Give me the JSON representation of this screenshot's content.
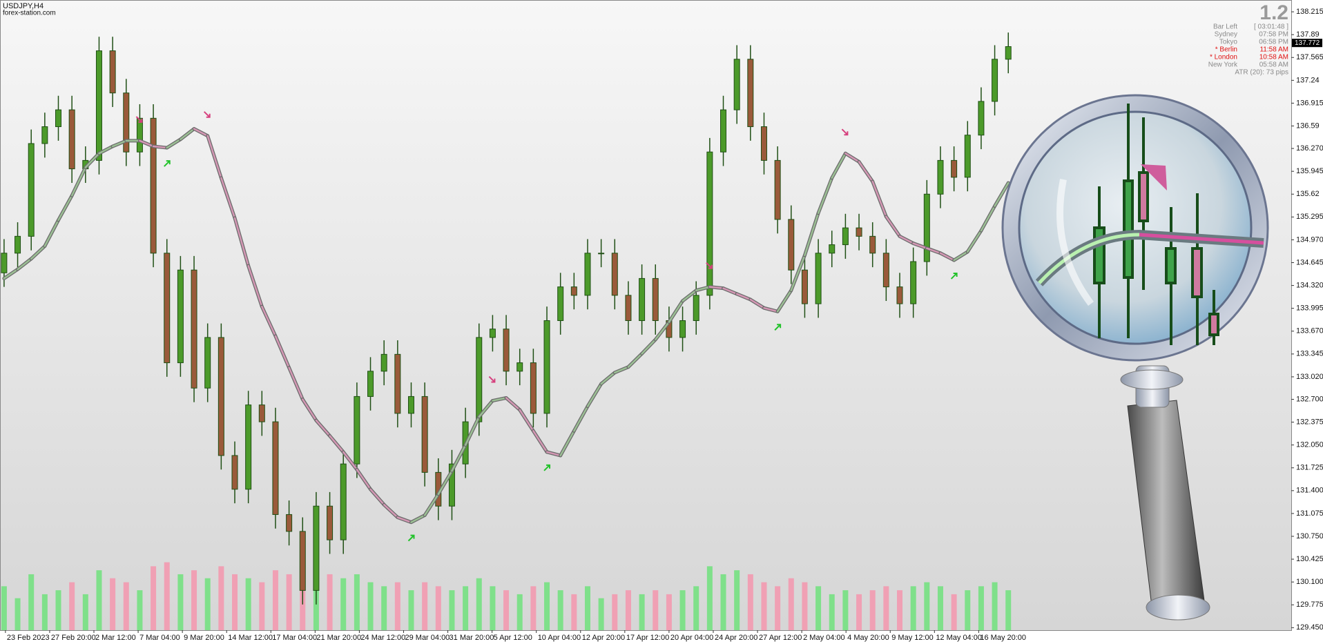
{
  "chart_data": {
    "type": "candlestick",
    "symbol": "USDJPY,H4",
    "source": "forex-station.com",
    "open": [
      134.5,
      134.78,
      135.02,
      136.34,
      136.58,
      136.82,
      135.98,
      136.1,
      137.66,
      137.06,
      136.22,
      136.7,
      134.78,
      133.22,
      134.54,
      132.86,
      133.58,
      131.9,
      131.42,
      132.62,
      132.38,
      131.06,
      130.82,
      129.98,
      131.18,
      130.7,
      131.78,
      132.74,
      133.1,
      133.34,
      132.5,
      132.74,
      131.66,
      131.18,
      131.78,
      132.38,
      133.58,
      133.7,
      133.1,
      133.22,
      132.5,
      133.82,
      134.3,
      134.18,
      134.78,
      134.78,
      134.18,
      133.82,
      134.42,
      133.82,
      133.58,
      133.82,
      134.18,
      136.22,
      136.82,
      137.54,
      136.58,
      136.1,
      135.26,
      134.54,
      134.06,
      134.78,
      134.9,
      135.14,
      135.02,
      134.78,
      134.3,
      134.06,
      134.66,
      135.62,
      136.1,
      135.86,
      136.46,
      136.94,
      137.54
    ],
    "high": [
      134.98,
      135.22,
      136.54,
      136.78,
      137.02,
      137.02,
      136.3,
      137.86,
      137.86,
      137.26,
      136.9,
      136.9,
      134.98,
      134.74,
      134.74,
      133.78,
      133.78,
      132.1,
      132.82,
      132.82,
      132.58,
      131.26,
      131.02,
      131.38,
      131.38,
      131.98,
      132.94,
      133.3,
      133.54,
      133.54,
      132.94,
      132.94,
      131.86,
      131.98,
      132.58,
      133.78,
      133.9,
      133.9,
      133.42,
      133.42,
      134.02,
      134.5,
      134.5,
      134.98,
      134.98,
      134.98,
      134.38,
      134.62,
      134.62,
      134.02,
      134.02,
      134.38,
      136.42,
      137.02,
      137.74,
      137.74,
      136.78,
      136.3,
      135.46,
      134.74,
      134.98,
      135.1,
      135.34,
      135.34,
      135.22,
      134.98,
      134.5,
      134.86,
      135.82,
      136.3,
      136.3,
      136.66,
      137.14,
      137.74,
      137.92
    ],
    "low": [
      134.3,
      134.58,
      134.82,
      136.14,
      136.38,
      135.78,
      135.78,
      135.9,
      136.86,
      136.02,
      136.02,
      134.58,
      133.02,
      133.02,
      132.66,
      132.66,
      131.7,
      131.22,
      131.22,
      132.18,
      130.86,
      130.62,
      129.78,
      129.78,
      130.5,
      130.5,
      131.58,
      132.54,
      132.9,
      132.3,
      132.3,
      131.46,
      130.98,
      130.98,
      131.58,
      132.18,
      133.38,
      132.9,
      132.9,
      132.3,
      132.3,
      133.62,
      133.98,
      133.98,
      134.58,
      133.98,
      133.62,
      133.62,
      133.62,
      133.38,
      133.38,
      133.62,
      133.98,
      136.02,
      136.62,
      136.38,
      135.9,
      135.06,
      134.34,
      133.86,
      133.86,
      134.58,
      134.7,
      134.82,
      134.58,
      134.1,
      133.86,
      133.86,
      134.46,
      135.42,
      135.66,
      135.66,
      136.26,
      136.74,
      137.34
    ],
    "close": [
      134.78,
      135.02,
      136.34,
      136.58,
      136.82,
      135.98,
      136.1,
      137.66,
      137.06,
      136.22,
      136.7,
      134.78,
      133.22,
      134.54,
      132.86,
      133.58,
      131.9,
      131.42,
      132.62,
      132.38,
      131.06,
      130.82,
      129.98,
      131.18,
      130.7,
      131.78,
      132.74,
      133.1,
      133.34,
      132.5,
      132.74,
      131.66,
      131.18,
      131.78,
      132.38,
      133.58,
      133.7,
      133.1,
      133.22,
      132.5,
      133.82,
      134.3,
      134.18,
      134.78,
      134.78,
      134.18,
      133.82,
      134.42,
      133.82,
      133.58,
      133.82,
      134.18,
      136.22,
      136.82,
      137.54,
      136.58,
      136.1,
      135.26,
      134.54,
      134.06,
      134.78,
      134.9,
      135.14,
      135.02,
      134.78,
      134.3,
      134.06,
      134.66,
      135.62,
      136.1,
      135.86,
      136.46,
      136.94,
      137.54,
      137.72
    ],
    "ma": [
      134.42,
      134.55,
      134.7,
      134.88,
      135.25,
      135.6,
      136.0,
      136.2,
      136.3,
      136.38,
      136.38,
      136.3,
      136.28,
      136.4,
      136.55,
      136.45,
      135.85,
      135.28,
      134.6,
      134.02,
      133.6,
      133.15,
      132.7,
      132.4,
      132.18,
      131.95,
      131.7,
      131.42,
      131.2,
      131.02,
      130.95,
      131.05,
      131.35,
      131.68,
      132.05,
      132.45,
      132.68,
      132.72,
      132.55,
      132.25,
      131.95,
      131.9,
      132.25,
      132.6,
      132.92,
      133.08,
      133.16,
      133.35,
      133.55,
      133.8,
      134.1,
      134.25,
      134.3,
      134.28,
      134.2,
      134.12,
      134.0,
      133.95,
      134.25,
      134.75,
      135.35,
      135.85,
      136.2,
      136.08,
      135.8,
      135.3,
      135.02,
      134.92,
      134.85,
      134.78,
      134.68,
      134.8,
      135.1,
      135.45,
      135.78
    ],
    "volume": [
      55,
      40,
      70,
      45,
      50,
      60,
      45,
      75,
      65,
      60,
      50,
      80,
      85,
      70,
      75,
      65,
      80,
      70,
      65,
      60,
      75,
      70,
      95,
      85,
      70,
      65,
      70,
      60,
      55,
      60,
      50,
      60,
      55,
      50,
      55,
      65,
      55,
      50,
      45,
      55,
      60,
      50,
      45,
      55,
      40,
      45,
      50,
      45,
      50,
      45,
      50,
      55,
      80,
      70,
      75,
      70,
      60,
      55,
      65,
      60,
      55,
      45,
      50,
      45,
      50,
      55,
      50,
      55,
      60,
      55,
      45,
      50,
      55,
      60,
      50
    ],
    "signals": {
      "down": [
        10,
        15,
        36,
        52,
        62
      ],
      "up": [
        12,
        30,
        40,
        57,
        70
      ]
    },
    "bull_color": "#4c9a2a",
    "bear_color": "#9a5a3a",
    "wick_color": "#1f4f14",
    "ma_up_color": "#9bbf94",
    "ma_down_color": "#d497b4",
    "vol_up_color": "#7fe08a",
    "vol_down_color": "#f0a0b4",
    "last_price": 137.772,
    "xlim": [
      -0.3,
      94.85
    ],
    "xticks": [
      {
        "value": 0.1,
        "label": "23 Feb 2023"
      },
      {
        "value": 3.36,
        "label": "27 Feb 20:00"
      },
      {
        "value": 6.62,
        "label": "2 Mar 12:00"
      },
      {
        "value": 9.88,
        "label": "7 Mar 04:00"
      },
      {
        "value": 13.14,
        "label": "9 Mar 20:00"
      },
      {
        "value": 16.4,
        "label": "14 Mar 12:00"
      },
      {
        "value": 19.66,
        "label": "17 Mar 04:00"
      },
      {
        "value": 22.92,
        "label": "21 Mar 20:00"
      },
      {
        "value": 26.18,
        "label": "24 Mar 12:00"
      },
      {
        "value": 29.44,
        "label": "29 Mar 04:00"
      },
      {
        "value": 32.7,
        "label": "31 Mar 20:00"
      },
      {
        "value": 35.96,
        "label": "5 Apr 12:00"
      },
      {
        "value": 39.22,
        "label": "10 Apr 04:00"
      },
      {
        "value": 42.48,
        "label": "12 Apr 20:00"
      },
      {
        "value": 45.74,
        "label": "17 Apr 12:00"
      },
      {
        "value": 49.0,
        "label": "20 Apr 04:00"
      },
      {
        "value": 52.26,
        "label": "24 Apr 20:00"
      },
      {
        "value": 55.52,
        "label": "27 Apr 12:00"
      },
      {
        "value": 58.78,
        "label": "2 May 04:00"
      },
      {
        "value": 62.04,
        "label": "4 May 20:00"
      },
      {
        "value": 65.3,
        "label": "9 May 12:00"
      },
      {
        "value": 68.56,
        "label": "12 May 04:00"
      },
      {
        "value": 71.82,
        "label": "16 May 20:00"
      }
    ],
    "ylim": [
      129.414,
      138.383
    ],
    "yticks": [
      138.215,
      137.89,
      {
        "value": 137.565,
        "label": "137.565"
      },
      137.24,
      136.915,
      136.59,
      {
        "value": 136.27,
        "label": "136.270"
      },
      135.945,
      135.62,
      135.295,
      {
        "value": 134.97,
        "label": "134.970"
      },
      134.645,
      {
        "value": 134.32,
        "label": "134.320"
      },
      133.995,
      {
        "value": 133.67,
        "label": "133.670"
      },
      133.345,
      {
        "value": 133.02,
        "label": "133.020"
      },
      {
        "value": 132.7,
        "label": "132.700"
      },
      132.375,
      {
        "value": 132.05,
        "label": "132.050"
      },
      131.725,
      {
        "value": 131.4,
        "label": "131.400"
      },
      131.075,
      {
        "value": 130.75,
        "label": "130.750"
      },
      130.425,
      {
        "value": 130.1,
        "label": "130.100"
      },
      129.775,
      {
        "value": 129.45,
        "label": "129.450"
      }
    ],
    "info_panel": {
      "version": "1.2",
      "rows": [
        {
          "label": "Bar Left",
          "value": "[ 03:01:48 ]",
          "color": "#8a8a8a"
        },
        {
          "label": "Sydney",
          "value": "07:58 PM",
          "color": "#8a8a8a"
        },
        {
          "label": "Tokyo",
          "value": "06:58 PM",
          "color": "#8a8a8a"
        },
        {
          "label": "* Berlin",
          "value": "11:58 AM",
          "color": "#e01010"
        },
        {
          "label": "* London",
          "value": "10:58 AM",
          "color": "#e01010"
        },
        {
          "label": "New York",
          "value": "05:58 AM",
          "color": "#8a8a8a"
        }
      ],
      "atr": "ATR (20): 73 pips"
    }
  }
}
